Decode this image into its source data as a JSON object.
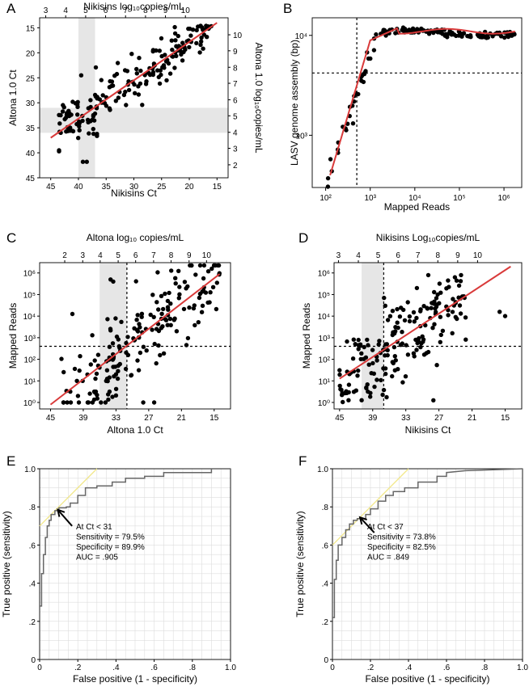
{
  "colors": {
    "dot": "#000000",
    "fit": "#d93a3a",
    "shade": "#e6e6e6",
    "roc": "#666666",
    "tangent": "#f2e88a",
    "grid": "#dddddd"
  },
  "chart_data": [
    {
      "panel": "A",
      "type": "scatter",
      "xlabel": "Nikisins Ct",
      "ylabel": "Altona 1.0 Ct",
      "top_label": "Nikisins log₁₀copies/mL",
      "right_label": "Altona 1.0 log₁₀copies/mL",
      "xlim": [
        47,
        13
      ],
      "ylim": [
        45,
        13
      ],
      "xticks": [
        "45",
        "40",
        "35",
        "30",
        "25",
        "20",
        "15"
      ],
      "xtick_values": [
        45,
        40,
        35,
        30,
        25,
        20,
        15
      ],
      "yticks": [
        "15",
        "20",
        "25",
        "30",
        "35",
        "40",
        "45"
      ],
      "ytick_values": [
        15,
        20,
        25,
        30,
        35,
        40,
        45
      ],
      "top_ticks": [
        "3",
        "4",
        "5",
        "6",
        "7",
        "8",
        "9",
        "10"
      ],
      "top_tick_values": [
        45.9,
        42.3,
        38.7,
        35.1,
        31.5,
        27.9,
        24.3,
        20.7
      ],
      "right_ticks": [
        "10",
        "9",
        "8",
        "7",
        "6",
        "5",
        "4",
        "3",
        "2"
      ],
      "right_tick_values": [
        16.4,
        19.6,
        22.9,
        26.1,
        29.4,
        32.6,
        35.9,
        39.1,
        42.4
      ],
      "shade_x": [
        40,
        37
      ],
      "shade_y": [
        31,
        36
      ],
      "fit": {
        "x": [
          45,
          15
        ],
        "y": [
          37,
          14
        ]
      }
    },
    {
      "panel": "B",
      "type": "scatter",
      "xlabel": "Mapped Reads",
      "ylabel": "LASV genome assembly (bp)",
      "xscale": "log",
      "yscale": "log",
      "xlim": [
        50,
        2500000
      ],
      "ylim": [
        300,
        15000
      ],
      "xticks": [
        "10²",
        "10³",
        "10⁴",
        "10⁵",
        "10⁶"
      ],
      "xtick_values": [
        100,
        1000,
        10000,
        100000,
        1000000
      ],
      "yticks": [
        "10³",
        "10⁴"
      ],
      "ytick_values": [
        1000,
        10000
      ],
      "vline": 500,
      "hline": 4200
    },
    {
      "panel": "C",
      "type": "scatter",
      "xlabel": "Altona 1.0 Ct",
      "ylabel": "Mapped Reads",
      "top_label": "Altona log₁₀ copies/mL",
      "xlim": [
        47,
        12
      ],
      "yscale": "log",
      "ylim": [
        0.5,
        3000000
      ],
      "xticks": [
        "45",
        "39",
        "33",
        "27",
        "21",
        "15"
      ],
      "xtick_values": [
        45,
        39,
        33,
        27,
        21,
        15
      ],
      "yticks": [
        "10⁰",
        "10¹",
        "10²",
        "10³",
        "10⁴",
        "10⁵",
        "10⁶"
      ],
      "ytick_values": [
        1,
        10,
        100,
        1000,
        10000,
        100000,
        1000000
      ],
      "top_ticks": [
        "2",
        "3",
        "4",
        "5",
        "6",
        "7",
        "8",
        "9",
        "10"
      ],
      "top_tick_values": [
        42.4,
        39.1,
        35.9,
        32.6,
        29.4,
        26.1,
        22.9,
        19.6,
        16.4
      ],
      "shade_x": [
        36,
        31
      ],
      "vline": 31,
      "hline": 400,
      "fit": {
        "x": [
          45,
          14
        ],
        "y_log": [
          -0.1,
          5.95
        ]
      }
    },
    {
      "panel": "D",
      "type": "scatter",
      "xlabel": "Nikisins Ct",
      "ylabel": "Mapped Reads",
      "top_label": "Nikisins Log₁₀copies/mL",
      "xlim": [
        46,
        12
      ],
      "yscale": "log",
      "ylim": [
        0.5,
        3000000
      ],
      "xticks": [
        "45",
        "39",
        "33",
        "27",
        "21",
        "15"
      ],
      "xtick_values": [
        45,
        39,
        33,
        27,
        21,
        15
      ],
      "yticks": [
        "10⁰",
        "10¹",
        "10²",
        "10³",
        "10⁴",
        "10⁵",
        "10⁶"
      ],
      "ytick_values": [
        1,
        10,
        100,
        1000,
        10000,
        100000,
        1000000
      ],
      "top_ticks": [
        "3",
        "4",
        "5",
        "6",
        "7",
        "8",
        "9",
        "10"
      ],
      "top_tick_values": [
        45.2,
        41.6,
        38.0,
        34.4,
        30.8,
        27.2,
        23.6,
        20.0
      ],
      "shade_x": [
        41,
        37
      ],
      "vline": 37,
      "hline": 400,
      "fit": {
        "x": [
          45,
          14
        ],
        "y_log": [
          1.1,
          6.3
        ]
      }
    },
    {
      "panel": "E",
      "type": "line",
      "xlabel": "False positive (1 - specificity)",
      "ylabel": "True positive (sensitivity)",
      "xlim": [
        0,
        1
      ],
      "ylim": [
        0,
        1
      ],
      "xticks": [
        "0",
        ".2",
        ".4",
        ".6",
        ".8",
        "1.0"
      ],
      "xtick_values": [
        0,
        0.2,
        0.4,
        0.6,
        0.8,
        1.0
      ],
      "yticks": [
        "0",
        ".2",
        ".4",
        ".6",
        ".8",
        "1.0"
      ],
      "ytick_values": [
        0,
        0.2,
        0.4,
        0.6,
        0.8,
        1.0
      ],
      "roc": {
        "fpr": [
          0,
          0,
          0.01,
          0.01,
          0.02,
          0.02,
          0.03,
          0.03,
          0.04,
          0.04,
          0.05,
          0.05,
          0.06,
          0.06,
          0.08,
          0.08,
          0.101,
          0.101,
          0.14,
          0.14,
          0.16,
          0.16,
          0.2,
          0.2,
          0.24,
          0.24,
          0.3,
          0.3,
          0.38,
          0.38,
          0.45,
          0.45,
          0.55,
          0.55,
          0.65,
          0.65,
          0.9,
          0.9,
          1.0
        ],
        "tpr": [
          0,
          0.28,
          0.28,
          0.45,
          0.45,
          0.55,
          0.55,
          0.64,
          0.64,
          0.7,
          0.7,
          0.73,
          0.73,
          0.76,
          0.76,
          0.78,
          0.78,
          0.795,
          0.795,
          0.8,
          0.8,
          0.82,
          0.82,
          0.86,
          0.86,
          0.9,
          0.9,
          0.91,
          0.91,
          0.93,
          0.93,
          0.95,
          0.95,
          0.96,
          0.96,
          0.98,
          0.98,
          1.0,
          1.0
        ]
      },
      "tangent": {
        "x": [
          0,
          0.3
        ],
        "y": [
          0.7,
          1.0
        ]
      },
      "arrow": {
        "from": [
          0.17,
          0.7
        ],
        "to": [
          0.095,
          0.785
        ]
      },
      "annotation": [
        "At Ct < 31",
        "Sensitivity = 79.5%",
        "Specificity = 89.9%",
        "AUC = .905"
      ]
    },
    {
      "panel": "F",
      "type": "line",
      "xlabel": "False positive (1 - specificity)",
      "ylabel": "True positive (sensitivity)",
      "xlim": [
        0,
        1
      ],
      "ylim": [
        0,
        1
      ],
      "xticks": [
        "0",
        ".2",
        ".4",
        ".6",
        ".8",
        "1.0"
      ],
      "xtick_values": [
        0,
        0.2,
        0.4,
        0.6,
        0.8,
        1.0
      ],
      "yticks": [
        "0",
        ".2",
        ".4",
        ".6",
        ".8",
        "1.0"
      ],
      "ytick_values": [
        0,
        0.2,
        0.4,
        0.6,
        0.8,
        1.0
      ],
      "roc": {
        "fpr": [
          0,
          0,
          0.01,
          0.01,
          0.02,
          0.02,
          0.03,
          0.03,
          0.05,
          0.05,
          0.07,
          0.07,
          0.09,
          0.09,
          0.11,
          0.11,
          0.13,
          0.13,
          0.175,
          0.175,
          0.2,
          0.2,
          0.24,
          0.24,
          0.28,
          0.28,
          0.32,
          0.32,
          0.38,
          0.38,
          0.45,
          0.45,
          0.55,
          0.55,
          0.6,
          0.6,
          0.7,
          1.0
        ],
        "tpr": [
          0,
          0.22,
          0.22,
          0.42,
          0.42,
          0.52,
          0.52,
          0.6,
          0.6,
          0.64,
          0.64,
          0.68,
          0.68,
          0.71,
          0.71,
          0.73,
          0.73,
          0.738,
          0.738,
          0.76,
          0.76,
          0.79,
          0.79,
          0.83,
          0.83,
          0.86,
          0.86,
          0.88,
          0.88,
          0.9,
          0.9,
          0.93,
          0.93,
          0.96,
          0.96,
          0.98,
          0.99,
          1.0
        ]
      },
      "tangent": {
        "x": [
          0,
          0.4
        ],
        "y": [
          0.6,
          1.0
        ]
      },
      "arrow": {
        "from": [
          0.22,
          0.665
        ],
        "to": [
          0.145,
          0.745
        ]
      },
      "annotation": [
        "At Ct < 37",
        "Sensitivity = 73.8%",
        "Specificity = 82.5%",
        "AUC = .849"
      ]
    }
  ]
}
